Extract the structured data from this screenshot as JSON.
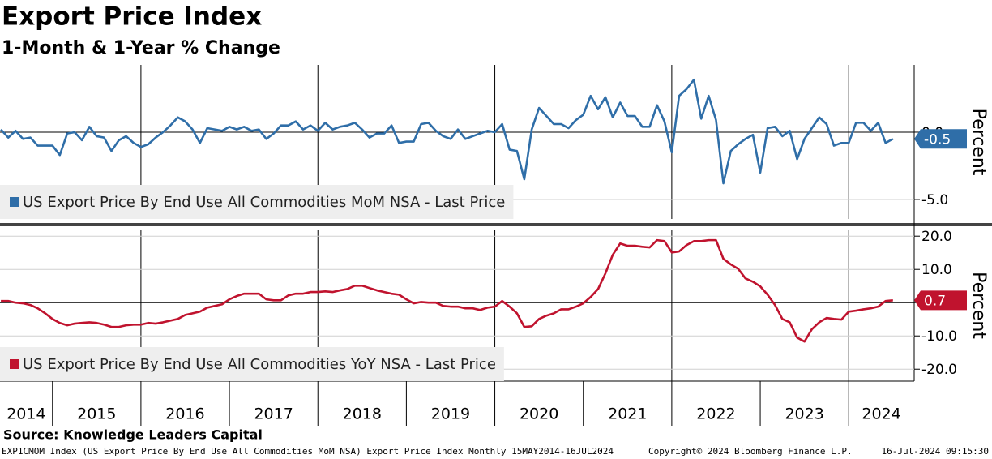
{
  "title": "Export Price Index",
  "subtitle": "1-Month & 1-Year % Change",
  "source": "Source: Knowledge Leaders Capital",
  "footer": {
    "left": "EXP1CMOM Index (US Export Price By End Use All Commodities MoM NSA) Export Price Index  Monthly 15MAY2014-16JUL2024",
    "center": "Copyright© 2024 Bloomberg Finance L.P.",
    "right": "16-Jul-2024 09:15:30"
  },
  "chart_data": [
    {
      "type": "line",
      "ylabel": "Percent",
      "xlim": [
        2014.407,
        2024.74
      ],
      "ylim": [
        -6.45,
        5.0
      ],
      "yticks": [
        {
          "value": 0,
          "label": "0.0"
        },
        {
          "value": -5,
          "label": "-5.0"
        }
      ],
      "grid": true,
      "x": [
        2014.417,
        2014.5,
        2014.583,
        2014.667,
        2014.75,
        2014.833,
        2014.917,
        2015,
        2015.083,
        2015.167,
        2015.25,
        2015.333,
        2015.417,
        2015.5,
        2015.583,
        2015.667,
        2015.75,
        2015.833,
        2015.917,
        2016,
        2016.083,
        2016.167,
        2016.25,
        2016.333,
        2016.417,
        2016.5,
        2016.583,
        2016.667,
        2016.75,
        2016.833,
        2016.917,
        2017,
        2017.083,
        2017.167,
        2017.25,
        2017.333,
        2017.417,
        2017.5,
        2017.583,
        2017.667,
        2017.75,
        2017.833,
        2017.917,
        2018,
        2018.083,
        2018.167,
        2018.25,
        2018.333,
        2018.417,
        2018.5,
        2018.583,
        2018.667,
        2018.75,
        2018.833,
        2018.917,
        2019,
        2019.083,
        2019.167,
        2019.25,
        2019.333,
        2019.417,
        2019.5,
        2019.583,
        2019.667,
        2019.75,
        2019.833,
        2019.917,
        2020,
        2020.083,
        2020.167,
        2020.25,
        2020.333,
        2020.417,
        2020.5,
        2020.583,
        2020.667,
        2020.75,
        2020.833,
        2020.917,
        2021,
        2021.083,
        2021.167,
        2021.25,
        2021.333,
        2021.417,
        2021.5,
        2021.583,
        2021.667,
        2021.75,
        2021.833,
        2021.917,
        2022,
        2022.083,
        2022.167,
        2022.25,
        2022.333,
        2022.417,
        2022.5,
        2022.583,
        2022.667,
        2022.75,
        2022.833,
        2022.917,
        2023,
        2023.083,
        2023.167,
        2023.25,
        2023.333,
        2023.417,
        2023.5,
        2023.583,
        2023.667,
        2023.75,
        2023.833,
        2023.917,
        2024,
        2024.083,
        2024.167,
        2024.25,
        2024.333,
        2024.417,
        2024.5
      ],
      "series": [
        {
          "name": "US Export Price By End Use All Commodities MoM NSA - Last Price",
          "color": "#2f6ea8",
          "values": [
            0.2,
            -0.4,
            0.1,
            -0.5,
            -0.4,
            -1.0,
            -1.0,
            -1.0,
            -1.7,
            -0.1,
            0.0,
            -0.6,
            0.4,
            -0.3,
            -0.4,
            -1.4,
            -0.6,
            -0.3,
            -0.8,
            -1.1,
            -0.9,
            -0.4,
            0.0,
            0.5,
            1.1,
            0.8,
            0.2,
            -0.8,
            0.3,
            0.2,
            0.1,
            0.4,
            0.2,
            0.4,
            0.1,
            0.2,
            -0.5,
            -0.1,
            0.5,
            0.5,
            0.8,
            0.2,
            0.5,
            0.1,
            0.7,
            0.2,
            0.4,
            0.5,
            0.7,
            0.2,
            -0.4,
            -0.1,
            -0.1,
            0.5,
            -0.8,
            -0.7,
            -0.7,
            0.6,
            0.7,
            0.1,
            -0.3,
            -0.5,
            0.2,
            -0.5,
            -0.3,
            -0.1,
            0.1,
            0.0,
            0.6,
            -1.3,
            -1.4,
            -3.5,
            0.2,
            1.8,
            1.2,
            0.6,
            0.6,
            0.3,
            0.9,
            1.3,
            2.7,
            1.7,
            2.6,
            1.1,
            2.2,
            1.2,
            1.2,
            0.4,
            0.4,
            2.0,
            0.8,
            -1.5,
            2.7,
            3.2,
            3.9,
            1.0,
            2.7,
            0.9,
            -3.8,
            -1.4,
            -0.9,
            -0.5,
            -0.2,
            -3.0,
            0.3,
            0.4,
            -0.3,
            0.1,
            -2.0,
            -0.5,
            0.3,
            1.1,
            0.6,
            -1.0,
            -0.8,
            -0.8,
            0.7,
            0.7,
            0.1,
            0.7,
            -0.8,
            -0.5
          ]
        }
      ]
    },
    {
      "type": "line",
      "ylabel": "Percent",
      "xlim": [
        2014.407,
        2024.74
      ],
      "ylim": [
        -23.6,
        22.0
      ],
      "yticks": [
        {
          "value": 20,
          "label": "20.0"
        },
        {
          "value": 10,
          "label": "10.0"
        },
        {
          "value": 0,
          "label": "0.0"
        },
        {
          "value": -10,
          "label": "-10.0"
        },
        {
          "value": -20,
          "label": "-20.0"
        }
      ],
      "xticks": [
        2014,
        2015,
        2016,
        2017,
        2018,
        2019,
        2020,
        2021,
        2022,
        2023,
        2024
      ],
      "grid": true,
      "x": [
        2014.417,
        2014.5,
        2014.583,
        2014.667,
        2014.75,
        2014.833,
        2014.917,
        2015,
        2015.083,
        2015.167,
        2015.25,
        2015.333,
        2015.417,
        2015.5,
        2015.583,
        2015.667,
        2015.75,
        2015.833,
        2015.917,
        2016,
        2016.083,
        2016.167,
        2016.25,
        2016.333,
        2016.417,
        2016.5,
        2016.583,
        2016.667,
        2016.75,
        2016.833,
        2016.917,
        2017,
        2017.083,
        2017.167,
        2017.25,
        2017.333,
        2017.417,
        2017.5,
        2017.583,
        2017.667,
        2017.75,
        2017.833,
        2017.917,
        2018,
        2018.083,
        2018.167,
        2018.25,
        2018.333,
        2018.417,
        2018.5,
        2018.583,
        2018.667,
        2018.75,
        2018.833,
        2018.917,
        2019,
        2019.083,
        2019.167,
        2019.25,
        2019.333,
        2019.417,
        2019.5,
        2019.583,
        2019.667,
        2019.75,
        2019.833,
        2019.917,
        2020,
        2020.083,
        2020.167,
        2020.25,
        2020.333,
        2020.417,
        2020.5,
        2020.583,
        2020.667,
        2020.75,
        2020.833,
        2020.917,
        2021,
        2021.083,
        2021.167,
        2021.25,
        2021.333,
        2021.417,
        2021.5,
        2021.583,
        2021.667,
        2021.75,
        2021.833,
        2021.917,
        2022,
        2022.083,
        2022.167,
        2022.25,
        2022.333,
        2022.417,
        2022.5,
        2022.583,
        2022.667,
        2022.75,
        2022.833,
        2022.917,
        2023,
        2023.083,
        2023.167,
        2023.25,
        2023.333,
        2023.417,
        2023.5,
        2023.583,
        2023.667,
        2023.75,
        2023.833,
        2023.917,
        2024,
        2024.083,
        2024.167,
        2024.25,
        2024.333,
        2024.417,
        2024.5
      ],
      "series": [
        {
          "name": "US Export Price By End Use All Commodities YoY NSA - Last Price",
          "color": "#c0132e",
          "values": [
            0.5,
            0.5,
            0.0,
            -0.2,
            -0.7,
            -1.7,
            -3.2,
            -4.9,
            -6.1,
            -6.8,
            -6.3,
            -6.1,
            -5.9,
            -6.1,
            -6.6,
            -7.3,
            -7.3,
            -6.8,
            -6.6,
            -6.6,
            -6.1,
            -6.3,
            -5.9,
            -5.4,
            -4.9,
            -3.7,
            -3.2,
            -2.7,
            -1.5,
            -1.0,
            -0.5,
            1.0,
            2.0,
            2.7,
            2.7,
            2.7,
            1.0,
            0.7,
            0.7,
            2.2,
            2.7,
            2.7,
            3.2,
            3.2,
            3.4,
            3.2,
            3.7,
            4.1,
            5.1,
            5.1,
            4.4,
            3.7,
            3.2,
            2.7,
            2.4,
            1.0,
            -0.2,
            0.2,
            0.0,
            0.0,
            -1.0,
            -1.2,
            -1.2,
            -1.7,
            -1.7,
            -2.2,
            -1.5,
            -1.2,
            0.5,
            -1.2,
            -3.2,
            -7.3,
            -7.1,
            -4.9,
            -3.9,
            -3.2,
            -2.0,
            -2.0,
            -1.2,
            -0.2,
            1.7,
            4.1,
            8.8,
            14.4,
            17.8,
            17.1,
            17.1,
            16.8,
            16.6,
            18.8,
            18.5,
            15.1,
            15.4,
            17.3,
            18.5,
            18.5,
            18.8,
            18.8,
            13.2,
            11.5,
            10.2,
            7.3,
            6.3,
            4.9,
            2.4,
            -0.7,
            -4.9,
            -5.9,
            -10.5,
            -11.7,
            -8.0,
            -5.9,
            -4.6,
            -4.9,
            -5.1,
            -2.7,
            -2.4,
            -2.0,
            -1.7,
            -1.2,
            0.5,
            0.7
          ]
        }
      ]
    }
  ]
}
